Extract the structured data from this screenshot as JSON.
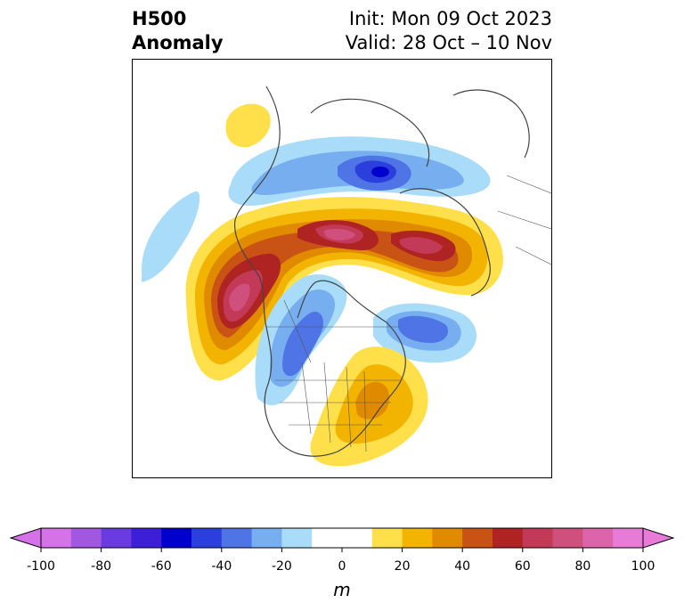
{
  "title": {
    "left_line1": "H500",
    "left_line2": "Anomaly",
    "right_line1": "Init: Mon 09 Oct 2023",
    "right_line2": "Valid: 28 Oct – 10 Nov"
  },
  "colorbar": {
    "label": "m",
    "ticks": [
      "-100",
      "-80",
      "-60",
      "-40",
      "-20",
      "0",
      "20",
      "40",
      "60",
      "80",
      "100"
    ],
    "bins": [
      "#d572e8",
      "#a257e0",
      "#6a3be0",
      "#3e1fd8",
      "#0000cc",
      "#2a3fdc",
      "#4f74e6",
      "#77aef0",
      "#a8dcf8",
      "#ffffff",
      "#ffffff",
      "#ffe04a",
      "#f2b400",
      "#e08a00",
      "#c95314",
      "#b02323",
      "#c23a57",
      "#cf4f7d",
      "#dc64ab",
      "#e87ad8"
    ],
    "extend_low": "#d572e8",
    "extend_high": "#e87ad8"
  },
  "map": {
    "projection": "polar stereographic, North America",
    "field": "500 hPa geopotential height anomaly"
  }
}
